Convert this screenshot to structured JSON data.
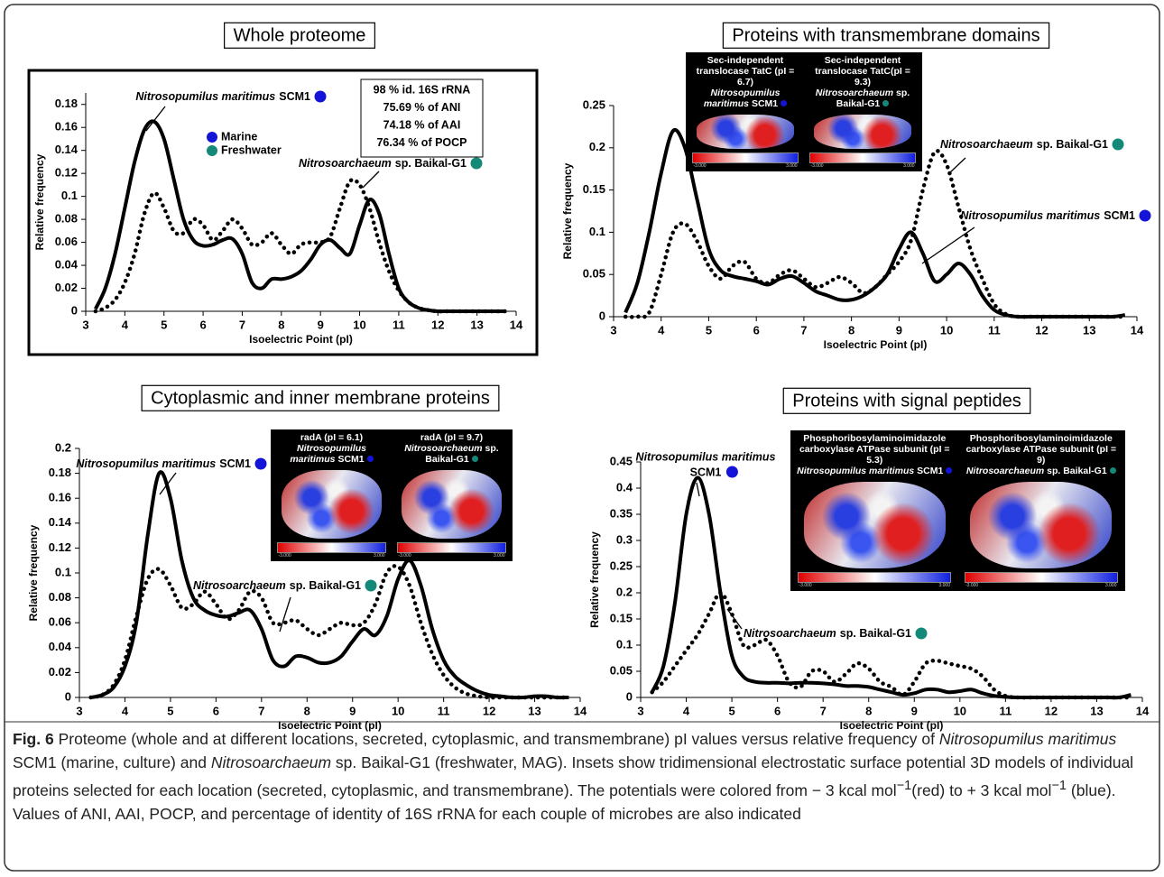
{
  "chart_data": [
    {
      "type": "line",
      "title": "Whole proteome",
      "x_label": "Isoelectric Point (pI)",
      "y_label": "Relative frequency",
      "x": [
        3.25,
        3.5,
        3.75,
        4,
        4.25,
        4.5,
        4.75,
        5,
        5.25,
        5.5,
        5.75,
        6,
        6.25,
        6.5,
        6.75,
        7,
        7.25,
        7.5,
        7.75,
        8,
        8.25,
        8.5,
        8.75,
        9,
        9.25,
        9.5,
        9.75,
        10,
        10.25,
        10.5,
        10.75,
        11,
        11.25,
        11.5,
        11.75,
        12,
        12.25,
        12.5,
        12.75,
        13,
        13.25,
        13.5,
        13.75
      ],
      "series": [
        {
          "color": "#000000",
          "dash": "solid",
          "values": [
            0.002,
            0.02,
            0.05,
            0.09,
            0.13,
            0.158,
            0.165,
            0.15,
            0.115,
            0.08,
            0.062,
            0.057,
            0.058,
            0.062,
            0.063,
            0.05,
            0.025,
            0.02,
            0.028,
            0.028,
            0.03,
            0.035,
            0.045,
            0.058,
            0.062,
            0.055,
            0.05,
            0.075,
            0.097,
            0.085,
            0.05,
            0.02,
            0.008,
            0.003,
            0.001,
            0,
            0,
            0,
            0,
            0,
            0,
            0,
            0
          ]
        },
        {
          "color": "#000000",
          "dash": "dotted",
          "values": [
            0,
            0.003,
            0.01,
            0.025,
            0.05,
            0.085,
            0.103,
            0.09,
            0.07,
            0.068,
            0.08,
            0.075,
            0.062,
            0.07,
            0.08,
            0.072,
            0.058,
            0.06,
            0.068,
            0.058,
            0.05,
            0.058,
            0.06,
            0.06,
            0.065,
            0.09,
            0.113,
            0.11,
            0.09,
            0.06,
            0.035,
            0.018,
            0.008,
            0.003,
            0.001,
            0,
            0,
            0,
            0,
            0,
            0,
            0,
            0
          ]
        }
      ],
      "xlim": [
        3,
        14
      ],
      "xticks": [
        3,
        4,
        5,
        6,
        7,
        8,
        9,
        10,
        11,
        12,
        13,
        14
      ],
      "ylim": [
        0,
        0.19
      ],
      "yticks": [
        0,
        0.02,
        0.04,
        0.06,
        0.08,
        0.1,
        0.12,
        0.14,
        0.16,
        0.18
      ],
      "annotations": [
        {
          "italic": "Nitrosopumilus maritimus",
          "text": "SCM1"
        },
        {
          "italic": "Nitrosoarchaeum",
          "text": "sp. Baikal-G1"
        }
      ],
      "legend": [
        {
          "name": "Marine",
          "color": "#1414d8"
        },
        {
          "name": "Freshwater",
          "color": "#14897a"
        }
      ],
      "info": [
        "98 % id. 16S rRNA",
        "75.69 % of ANI",
        "74.18 % of AAI",
        "76.34 % of POCP"
      ]
    },
    {
      "type": "line",
      "title": "Proteins with transmembrane domains",
      "x_label": "Isoelectric Point (pI)",
      "y_label": "Relative frequency",
      "x": [
        3.25,
        3.5,
        3.75,
        4,
        4.25,
        4.5,
        4.75,
        5,
        5.25,
        5.5,
        5.75,
        6,
        6.25,
        6.5,
        6.75,
        7,
        7.25,
        7.5,
        7.75,
        8,
        8.25,
        8.5,
        8.75,
        9,
        9.25,
        9.5,
        9.75,
        10,
        10.25,
        10.5,
        10.75,
        11,
        11.25,
        11.5,
        11.75,
        12,
        12.25,
        12.5,
        12.75,
        13,
        13.25,
        13.5,
        13.75
      ],
      "series": [
        {
          "color": "#000000",
          "dash": "solid",
          "values": [
            0.005,
            0.04,
            0.1,
            0.17,
            0.22,
            0.2,
            0.14,
            0.08,
            0.055,
            0.048,
            0.045,
            0.042,
            0.038,
            0.045,
            0.048,
            0.04,
            0.03,
            0.025,
            0.02,
            0.02,
            0.025,
            0.035,
            0.05,
            0.08,
            0.1,
            0.075,
            0.042,
            0.05,
            0.063,
            0.05,
            0.025,
            0.008,
            0.002,
            0,
            0,
            0,
            0,
            0,
            0,
            0,
            0,
            0,
            0.002
          ]
        },
        {
          "color": "#000000",
          "dash": "dotted",
          "values": [
            0,
            0,
            0.005,
            0.05,
            0.1,
            0.11,
            0.09,
            0.06,
            0.045,
            0.06,
            0.065,
            0.045,
            0.04,
            0.05,
            0.055,
            0.045,
            0.035,
            0.04,
            0.047,
            0.04,
            0.028,
            0.035,
            0.05,
            0.065,
            0.09,
            0.15,
            0.195,
            0.18,
            0.13,
            0.08,
            0.045,
            0.015,
            0.003,
            0,
            0,
            0,
            0,
            0,
            0,
            0,
            0,
            0,
            0
          ]
        }
      ],
      "xlim": [
        3,
        14
      ],
      "xticks": [
        3,
        4,
        5,
        6,
        7,
        8,
        9,
        10,
        11,
        12,
        13,
        14
      ],
      "ylim": [
        0,
        0.25
      ],
      "yticks": [
        0,
        0.05,
        0.1,
        0.15,
        0.2,
        0.25
      ],
      "annotations": [
        {
          "italic": "Nitrosopumilus maritimus",
          "text": "SCM1"
        },
        {
          "italic": "Nitrosoarchaeum",
          "text": "sp. Baikal-G1"
        }
      ],
      "insets": [
        {
          "title": "Sec-independent translocase TatC (pI = 6.7)",
          "italic": "Nitrosopumilus maritimus",
          "text": "SCM1",
          "scale": [
            "-3.000",
            "3.000"
          ]
        },
        {
          "title": "Sec-independent translocase TatC(pI = 9.3)",
          "italic": "Nitrosoarchaeum",
          "text": "sp. Baikal-G1",
          "scale": [
            "-3.000",
            "3.000"
          ]
        }
      ]
    },
    {
      "type": "line",
      "title": "Cytoplasmic and inner membrane proteins",
      "x_label": "Isoelectric Point (pI)",
      "y_label": "Relative frequency",
      "x": [
        3.25,
        3.5,
        3.75,
        4,
        4.25,
        4.5,
        4.75,
        5,
        5.25,
        5.5,
        5.75,
        6,
        6.25,
        6.5,
        6.75,
        7,
        7.25,
        7.5,
        7.75,
        8,
        8.25,
        8.5,
        8.75,
        9,
        9.25,
        9.5,
        9.75,
        10,
        10.25,
        10.5,
        10.75,
        11,
        11.25,
        11.5,
        11.75,
        12,
        12.25,
        12.5,
        12.75,
        13,
        13.25,
        13.5,
        13.75
      ],
      "series": [
        {
          "color": "#000000",
          "dash": "solid",
          "values": [
            0,
            0.002,
            0.008,
            0.025,
            0.06,
            0.13,
            0.18,
            0.16,
            0.11,
            0.08,
            0.07,
            0.066,
            0.065,
            0.068,
            0.07,
            0.055,
            0.03,
            0.025,
            0.033,
            0.032,
            0.028,
            0.028,
            0.033,
            0.045,
            0.055,
            0.05,
            0.065,
            0.095,
            0.11,
            0.09,
            0.055,
            0.03,
            0.017,
            0.01,
            0.005,
            0.002,
            0.001,
            0,
            0,
            0.001,
            0.001,
            0,
            0
          ]
        },
        {
          "color": "#000000",
          "dash": "dotted",
          "values": [
            0,
            0.002,
            0.01,
            0.03,
            0.065,
            0.095,
            0.103,
            0.09,
            0.072,
            0.075,
            0.085,
            0.075,
            0.063,
            0.07,
            0.085,
            0.08,
            0.06,
            0.06,
            0.062,
            0.055,
            0.05,
            0.055,
            0.06,
            0.058,
            0.06,
            0.075,
            0.1,
            0.105,
            0.09,
            0.06,
            0.035,
            0.018,
            0.008,
            0.003,
            0.001,
            0,
            0,
            0,
            0,
            0,
            0,
            0,
            0
          ]
        }
      ],
      "xlim": [
        3,
        14
      ],
      "xticks": [
        3,
        4,
        5,
        6,
        7,
        8,
        9,
        10,
        11,
        12,
        13,
        14
      ],
      "ylim": [
        0,
        0.2
      ],
      "yticks": [
        0,
        0.02,
        0.04,
        0.06,
        0.08,
        0.1,
        0.12,
        0.14,
        0.16,
        0.18,
        0.2
      ],
      "annotations": [
        {
          "italic": "Nitrosopumilus maritimus",
          "text": "SCM1"
        },
        {
          "italic": "Nitrosoarchaeum",
          "text": "sp. Baikal-G1"
        }
      ],
      "insets": [
        {
          "title": "radA (pI = 6.1)",
          "italic": "Nitrosopumilus maritimus",
          "text": "SCM1",
          "scale": [
            "-3.000",
            "3.000"
          ]
        },
        {
          "title": "radA (pI = 9.7)",
          "italic": "Nitrosoarchaeum",
          "text": "sp. Baikal-G1",
          "scale": [
            "-3.000",
            "3.000"
          ]
        }
      ]
    },
    {
      "type": "line",
      "title": "Proteins with signal peptides",
      "x_label": "Isoelectric Point (pI)",
      "y_label": "Relative frequency",
      "x": [
        3.25,
        3.5,
        3.75,
        4,
        4.25,
        4.5,
        4.75,
        5,
        5.25,
        5.5,
        5.75,
        6,
        6.25,
        6.5,
        6.75,
        7,
        7.25,
        7.5,
        7.75,
        8,
        8.25,
        8.5,
        8.75,
        9,
        9.25,
        9.5,
        9.75,
        10,
        10.25,
        10.5,
        10.75,
        11,
        11.25,
        11.5,
        11.75,
        12,
        12.25,
        12.5,
        12.75,
        13,
        13.25,
        13.5,
        13.75
      ],
      "series": [
        {
          "color": "#000000",
          "dash": "solid",
          "values": [
            0.01,
            0.06,
            0.18,
            0.35,
            0.42,
            0.35,
            0.2,
            0.08,
            0.04,
            0.03,
            0.028,
            0.028,
            0.027,
            0.028,
            0.028,
            0.027,
            0.025,
            0.022,
            0.022,
            0.02,
            0.015,
            0.01,
            0.005,
            0.008,
            0.015,
            0.015,
            0.01,
            0.012,
            0.015,
            0.008,
            0.003,
            0.001,
            0,
            0,
            0,
            0,
            0,
            0,
            0,
            0,
            0,
            0,
            0.005
          ]
        },
        {
          "color": "#000000",
          "dash": "dotted",
          "values": [
            0.01,
            0.03,
            0.06,
            0.09,
            0.12,
            0.16,
            0.2,
            0.16,
            0.1,
            0.1,
            0.11,
            0.08,
            0.03,
            0.02,
            0.05,
            0.05,
            0.03,
            0.045,
            0.065,
            0.055,
            0.03,
            0.02,
            0.005,
            0.03,
            0.065,
            0.07,
            0.065,
            0.06,
            0.055,
            0.04,
            0.015,
            0.003,
            0,
            0,
            0,
            0,
            0,
            0,
            0,
            0,
            0,
            0,
            0
          ]
        }
      ],
      "xlim": [
        3,
        14
      ],
      "xticks": [
        3,
        4,
        5,
        6,
        7,
        8,
        9,
        10,
        11,
        12,
        13,
        14
      ],
      "ylim": [
        0,
        0.45
      ],
      "yticks": [
        0,
        0.05,
        0.1,
        0.15,
        0.2,
        0.25,
        0.3,
        0.35,
        0.4,
        0.45
      ],
      "annotations": [
        {
          "italic": "Nitrosopumilus maritimus",
          "text": "SCM1"
        },
        {
          "italic": "Nitrosoarchaeum",
          "text": "sp. Baikal-G1"
        }
      ],
      "insets": [
        {
          "title": "Phosphoribosylaminoimidazole carboxylase ATPase subunit (pI = 5.3)",
          "italic": "Nitrosopumilus maritimus",
          "text": "SCM1",
          "scale": [
            "-3.000",
            "3.000"
          ]
        },
        {
          "title": "Phosphoribosylaminoimidazole carboxylase ATPase subunit (pI = 9)",
          "italic": "Nitrosoarchaeum",
          "text": "sp. Baikal-G1",
          "scale": [
            "-3.000",
            "3.000"
          ]
        }
      ]
    }
  ],
  "caption": {
    "label": "Fig. 6",
    "parts": [
      "Proteome (whole and at different locations, secreted, cytoplasmic, and transmembrane) pI values versus relative frequency of ",
      {
        "italic": "Nitrosopumilus maritimus"
      },
      " SCM1 (marine, culture) and ",
      {
        "italic": "Nitrosoarchaeum"
      },
      " sp. Baikal-G1 (freshwater, MAG). Insets show tridimensional electrostatic surface potential 3D models of individual proteins selected for each location (secreted, cytoplasmic, and transmembrane). The potentials were colored from − 3 kcal mol",
      {
        "sup": "−1"
      },
      "(red) to + 3 kcal mol",
      {
        "sup": "−1"
      },
      " (blue). Values of ANI, AAI, POCP, and percentage of identity of 16S rRNA for each couple of microbes are also indicated"
    ]
  }
}
